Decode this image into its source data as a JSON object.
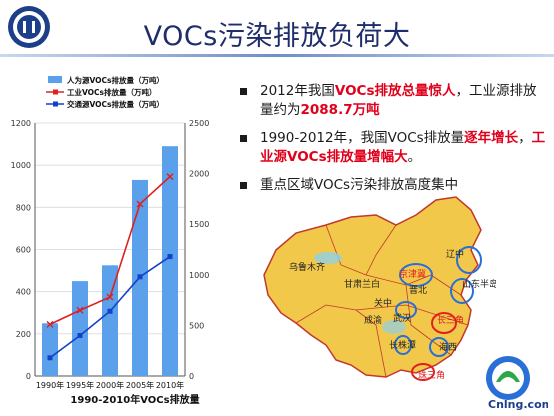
{
  "slide": {
    "title": "VOCs污染排放负荷大"
  },
  "bullets": [
    {
      "parts": [
        {
          "t": "2012年我国"
        },
        {
          "t": "VOCs排放总量惊人",
          "hl": true
        },
        {
          "t": "，工业源排放量约为"
        },
        {
          "t": "2088.7万吨",
          "hl": true
        }
      ]
    },
    {
      "parts": [
        {
          "t": "1990-2012年，我国VOCs排放量"
        },
        {
          "t": "逐年增长",
          "hl": true
        },
        {
          "t": "，"
        },
        {
          "t": "工业源VOCs排放量增幅大",
          "hl": true
        },
        {
          "t": "。"
        }
      ]
    },
    {
      "parts": [
        {
          "t": "重点区域VOCs污染排放高度集中"
        }
      ]
    }
  ],
  "chart_data": {
    "type": "bar",
    "categories": [
      "1990年",
      "1995年",
      "2000年",
      "2005年",
      "2010年"
    ],
    "series": [
      {
        "name": "人为源VOCs排放量（万吨）",
        "kind": "bar",
        "axis": "left",
        "color": "#5aa0ea",
        "values": [
          250,
          450,
          525,
          930,
          1090
        ]
      },
      {
        "name": "工业VOCs排放量（万吨）",
        "kind": "line",
        "axis": "right",
        "color": "#e02020",
        "values": [
          510,
          650,
          780,
          1700,
          1970
        ]
      },
      {
        "name": "交通源VOCs排放量（万吨）",
        "kind": "line",
        "axis": "right",
        "color": "#1540c8",
        "values": [
          180,
          400,
          640,
          980,
          1180
        ]
      }
    ],
    "left_axis": {
      "ylim": [
        0,
        1200
      ],
      "ticks": [
        "0",
        "200",
        "400",
        "600",
        "800",
        "1000",
        "1200"
      ]
    },
    "right_axis": {
      "ylim": [
        0,
        2500
      ],
      "ticks": [
        "0",
        "500",
        "1000",
        "1500",
        "2000",
        "2500"
      ]
    },
    "caption": "1990-2010年VOCs排放量",
    "legend_position": "top-left"
  },
  "map": {
    "labels": [
      "乌鲁木齐",
      "辽中",
      "京津冀",
      "甘肃兰白",
      "晋北",
      "山东半岛",
      "关中",
      "成渝",
      "武汉",
      "长三角",
      "长株潭",
      "海西",
      "珠三角"
    ]
  },
  "logo": {
    "school_text": "UNIVERSITY",
    "site_text": "Cnlng.com"
  }
}
